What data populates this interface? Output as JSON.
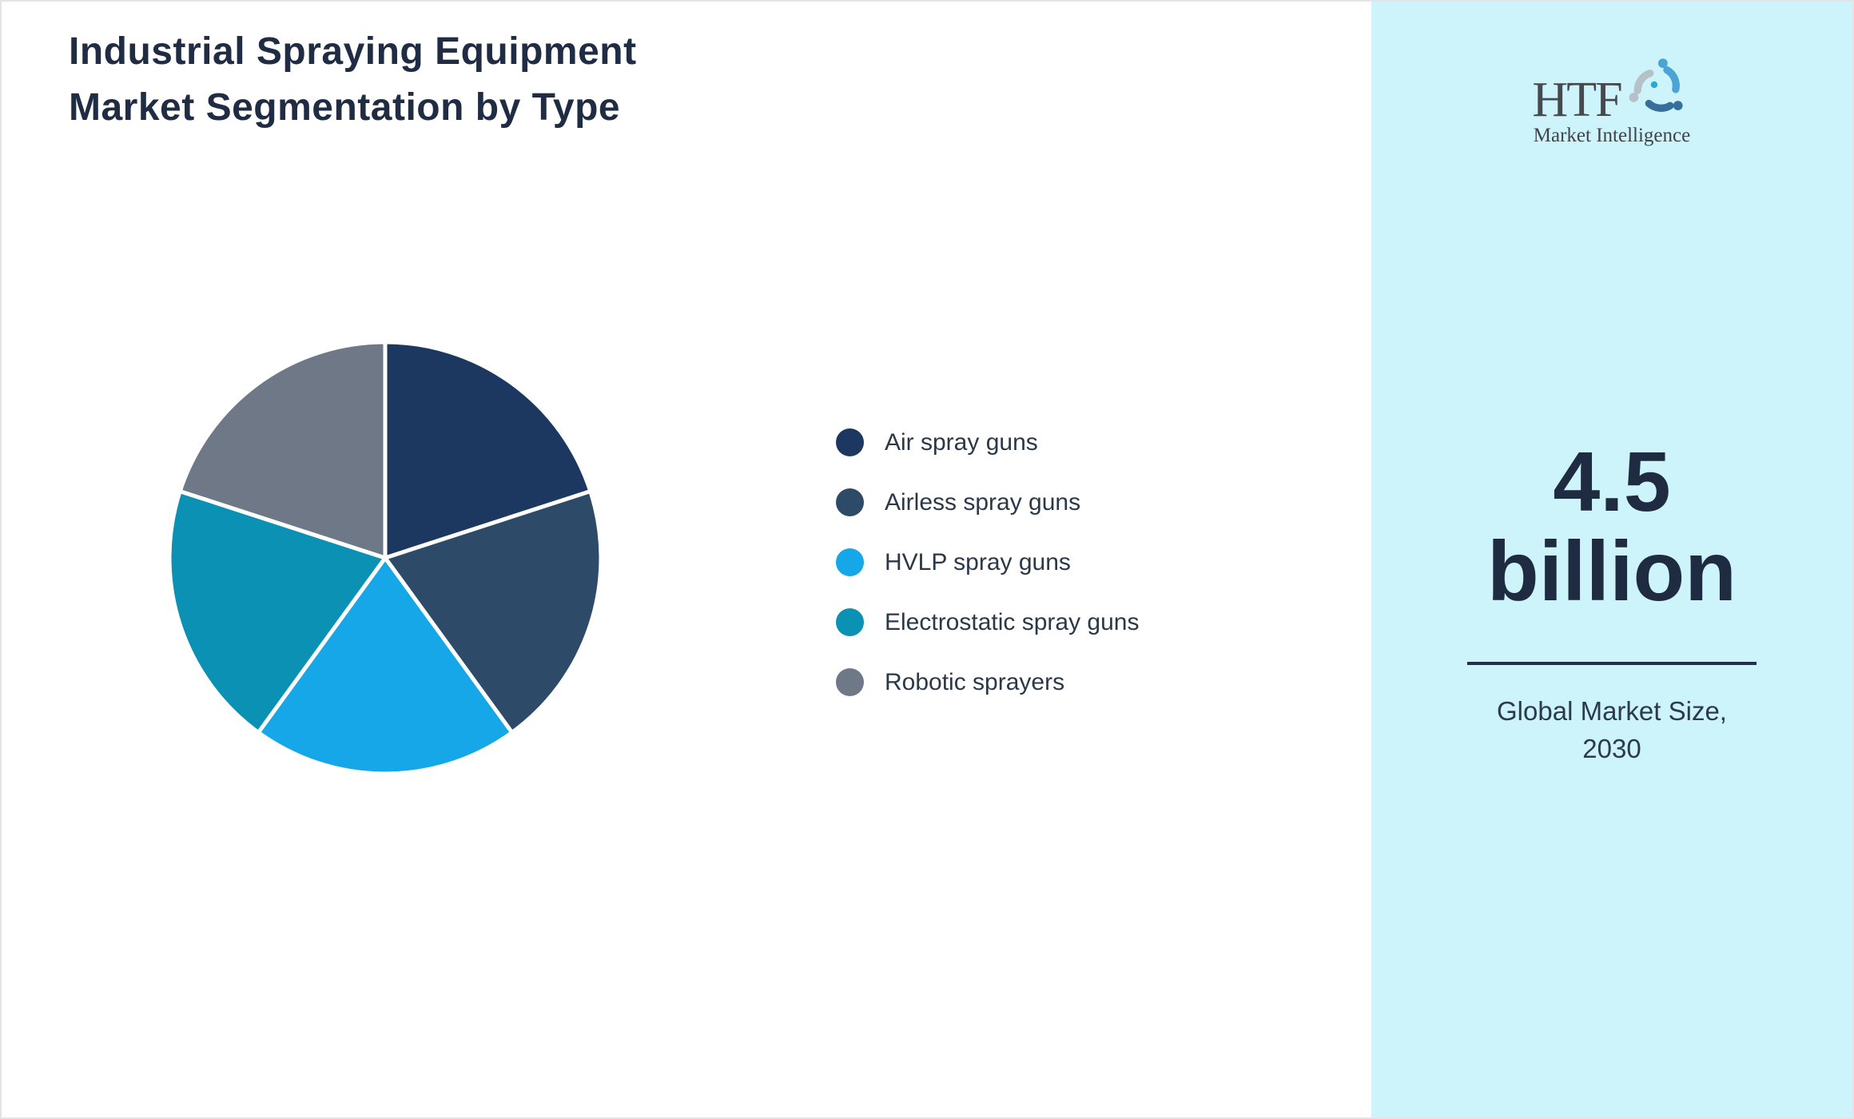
{
  "page": {
    "border_color": "#e3e4e8",
    "background": "#ffffff"
  },
  "header": {
    "title_lines": [
      "Industrial Spraying Equipment",
      "Market Segmentation by Type"
    ],
    "color": "#1f2c44"
  },
  "chart_data": {
    "type": "pie",
    "title": "Industrial Spraying Equipment Market Segmentation by Type",
    "labels": [
      "Air spray guns",
      "Airless spray guns",
      "HVLP spray guns",
      "Electrostatic spray guns",
      "Robotic sprayers"
    ],
    "values": [
      20,
      20,
      20,
      20,
      20
    ],
    "colors": [
      "#1c3860",
      "#2d4b69",
      "#16a7e8",
      "#0a91b4",
      "#6e7886"
    ],
    "start_angle_deg": 0,
    "direction": "clockwise",
    "slice_stroke": "#ffffff",
    "slice_stroke_width": 5,
    "legend_position": "right",
    "data_labels_shown": false
  },
  "sidebar": {
    "background": "#cdf3fb",
    "logo": {
      "text": "HTF",
      "subtext": "Market Intelligence",
      "icon": "htf-swirl-icon",
      "icon_colors": [
        "#4ba3d6",
        "#366f9c",
        "#b5c0c8",
        "#2aa9cf"
      ]
    },
    "stat": {
      "value_lines": [
        "4.5",
        "billion"
      ],
      "caption_lines": [
        "Global Market Size,",
        "2030"
      ],
      "value_color": "#1f2b40",
      "divider_color": "#22304a"
    }
  }
}
